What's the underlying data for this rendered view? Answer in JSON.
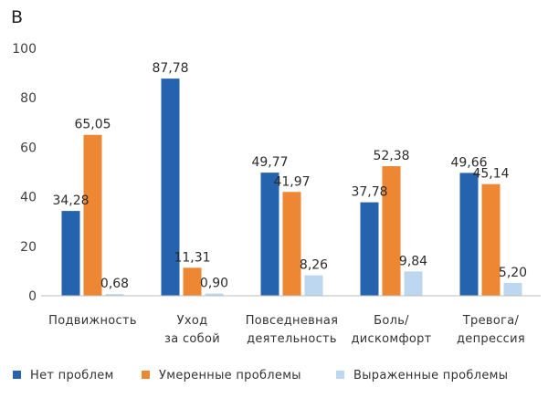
{
  "panel_label": "B",
  "chart_data": {
    "type": "bar",
    "categories": [
      [
        "Подвижность"
      ],
      [
        "Уход",
        "за собой"
      ],
      [
        "Повседневная",
        "деятельность"
      ],
      [
        "Боль/",
        "дискомфорт"
      ],
      [
        "Тревога/",
        "депрессия"
      ]
    ],
    "series": [
      {
        "name": "Нет проблем",
        "color": "#2563ae",
        "values": [
          34.28,
          87.78,
          49.77,
          37.78,
          49.66
        ],
        "labels": [
          "34,28",
          "87,78",
          "49,77",
          "37,78",
          "49,66"
        ]
      },
      {
        "name": "Умеренные проблемы",
        "color": "#ee8733",
        "values": [
          65.05,
          11.31,
          41.97,
          52.38,
          45.14
        ],
        "labels": [
          "65,05",
          "11,31",
          "41,97",
          "52,38",
          "45,14"
        ]
      },
      {
        "name": "Выраженные проблемы",
        "color": "#bcd7ef",
        "values": [
          0.68,
          0.9,
          8.26,
          9.84,
          5.2
        ],
        "labels": [
          "0,68",
          "0,90",
          "8,26",
          "9,84",
          "5,20"
        ]
      }
    ],
    "yticks": [
      "0",
      "20",
      "40",
      "60",
      "80",
      "100"
    ],
    "ylim": [
      0,
      100
    ],
    "grid": false,
    "legend_position": "bottom"
  }
}
